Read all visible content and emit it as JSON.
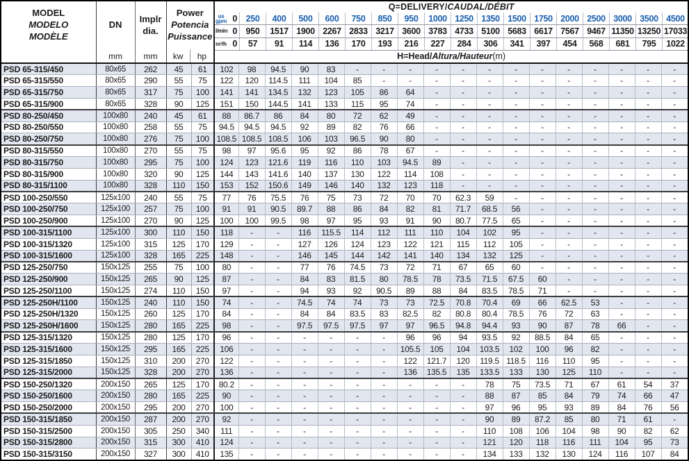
{
  "colors": {
    "accent_blue": "#1b5eae",
    "row_shade": "#e1e6f0",
    "text": "#1a1a1a"
  },
  "header": {
    "model": [
      "MODEL",
      "MODELO",
      "MODÈLE"
    ],
    "dn": "DN",
    "dn_unit": "mm",
    "impeller": [
      "Implr",
      "dia."
    ],
    "impeller_unit": "mm",
    "power": [
      "Power",
      "Potencia",
      "Puissance"
    ],
    "power_units": [
      "kw",
      "hp"
    ],
    "q_title": {
      "normal": "Q=DELIVERY/",
      "italic": "CAUDAL/DÉBIT"
    },
    "h_title": {
      "normal": "H=Head/",
      "italic": "Altura/Hauteur",
      "suffix": "(m)"
    },
    "flow_unit_labels": {
      "gpm": "us\ngpm",
      "lmin": "l/min",
      "m3h": "m³/h"
    }
  },
  "flow": {
    "gpm": [
      "0",
      "250",
      "400",
      "500",
      "600",
      "750",
      "850",
      "950",
      "1000",
      "1250",
      "1350",
      "1500",
      "1750",
      "2000",
      "2500",
      "3000",
      "3500",
      "4500"
    ],
    "lmin": [
      "0",
      "950",
      "1517",
      "1900",
      "2267",
      "2833",
      "3217",
      "3600",
      "3783",
      "4733",
      "5100",
      "5683",
      "6617",
      "7567",
      "9467",
      "11350",
      "13250",
      "17033"
    ],
    "m3h": [
      "0",
      "57",
      "91",
      "114",
      "136",
      "170",
      "193",
      "216",
      "227",
      "284",
      "306",
      "341",
      "397",
      "454",
      "568",
      "681",
      "795",
      "1022"
    ]
  },
  "group_end_rows": [
    3,
    6,
    10,
    13,
    16,
    19,
    22,
    26,
    29
  ],
  "rows": [
    {
      "model": "PSD 65-315/450",
      "dn": "80x65",
      "dia": "262",
      "kw": "45",
      "hp": "61",
      "head": [
        "102",
        "98",
        "94.5",
        "90",
        "83",
        "-",
        "-",
        "-",
        "-",
        "-",
        "-",
        "-",
        "-",
        "-",
        "-",
        "-",
        "-",
        "-"
      ]
    },
    {
      "model": "PSD 65-315/550",
      "dn": "80x65",
      "dia": "290",
      "kw": "55",
      "hp": "75",
      "head": [
        "122",
        "120",
        "114.5",
        "111",
        "104",
        "85",
        "-",
        "-",
        "-",
        "-",
        "-",
        "-",
        "-",
        "-",
        "-",
        "-",
        "-",
        "-"
      ]
    },
    {
      "model": "PSD 65-315/750",
      "dn": "80x65",
      "dia": "317",
      "kw": "75",
      "hp": "100",
      "head": [
        "141",
        "141",
        "134.5",
        "132",
        "123",
        "105",
        "86",
        "64",
        "-",
        "-",
        "-",
        "-",
        "-",
        "-",
        "-",
        "-",
        "-",
        "-"
      ]
    },
    {
      "model": "PSD 65-315/900",
      "dn": "80x65",
      "dia": "328",
      "kw": "90",
      "hp": "125",
      "head": [
        "151",
        "150",
        "144.5",
        "141",
        "133",
        "115",
        "95",
        "74",
        "-",
        "-",
        "-",
        "-",
        "-",
        "-",
        "-",
        "-",
        "-",
        "-"
      ]
    },
    {
      "model": "PSD 80-250/450",
      "dn": "100x80",
      "dia": "240",
      "kw": "45",
      "hp": "61",
      "head": [
        "88",
        "86.7",
        "86",
        "84",
        "80",
        "72",
        "62",
        "49",
        "-",
        "-",
        "-",
        "-",
        "-",
        "-",
        "-",
        "-",
        "-",
        "-"
      ]
    },
    {
      "model": "PSD 80-250/550",
      "dn": "100x80",
      "dia": "258",
      "kw": "55",
      "hp": "75",
      "head": [
        "94.5",
        "94.5",
        "94.5",
        "92",
        "89",
        "82",
        "76",
        "66",
        "-",
        "-",
        "-",
        "-",
        "-",
        "-",
        "-",
        "-",
        "-",
        "-"
      ]
    },
    {
      "model": "PSD 80-250/750",
      "dn": "100x80",
      "dia": "276",
      "kw": "75",
      "hp": "100",
      "head": [
        "108.5",
        "108.5",
        "108.5",
        "106",
        "103",
        "96.5",
        "90",
        "80",
        "-",
        "-",
        "-",
        "-",
        "-",
        "-",
        "-",
        "-",
        "-",
        "-"
      ]
    },
    {
      "model": "PSD 80-315/550",
      "dn": "100x80",
      "dia": "270",
      "kw": "55",
      "hp": "75",
      "head": [
        "98",
        "97",
        "95.6",
        "95",
        "92",
        "86",
        "78",
        "67",
        "-",
        "-",
        "-",
        "-",
        "-",
        "-",
        "-",
        "-",
        "-",
        "-"
      ]
    },
    {
      "model": "PSD 80-315/750",
      "dn": "100x80",
      "dia": "295",
      "kw": "75",
      "hp": "100",
      "head": [
        "124",
        "123",
        "121.6",
        "119",
        "116",
        "110",
        "103",
        "94.5",
        "89",
        "-",
        "-",
        "-",
        "-",
        "-",
        "-",
        "-",
        "-",
        "-"
      ]
    },
    {
      "model": "PSD 80-315/900",
      "dn": "100x80",
      "dia": "320",
      "kw": "90",
      "hp": "125",
      "head": [
        "144",
        "143",
        "141.6",
        "140",
        "137",
        "130",
        "122",
        "114",
        "108",
        "-",
        "-",
        "-",
        "-",
        "-",
        "-",
        "-",
        "-",
        "-"
      ]
    },
    {
      "model": "PSD 80-315/1100",
      "dn": "100x80",
      "dia": "328",
      "kw": "110",
      "hp": "150",
      "head": [
        "153",
        "152",
        "150.6",
        "149",
        "146",
        "140",
        "132",
        "123",
        "118",
        "-",
        "-",
        "-",
        "-",
        "-",
        "-",
        "-",
        "-",
        "-"
      ]
    },
    {
      "model": "PSD 100-250/550",
      "dn": "125x100",
      "dia": "240",
      "kw": "55",
      "hp": "75",
      "head": [
        "77",
        "76",
        "75.5",
        "76",
        "75",
        "73",
        "72",
        "70",
        "70",
        "62.3",
        "59",
        "-",
        "-",
        "-",
        "-",
        "-",
        "-",
        "-"
      ]
    },
    {
      "model": "PSD 100-250/750",
      "dn": "125x100",
      "dia": "257",
      "kw": "75",
      "hp": "100",
      "head": [
        "91",
        "91",
        "90.5",
        "89.7",
        "88",
        "86",
        "84",
        "82",
        "81",
        "71.7",
        "68.5",
        "56",
        "-",
        "-",
        "-",
        "-",
        "-",
        "-"
      ]
    },
    {
      "model": "PSD 100-250/900",
      "dn": "125x100",
      "dia": "270",
      "kw": "90",
      "hp": "125",
      "head": [
        "100",
        "100",
        "99.5",
        "98",
        "97",
        "95",
        "93",
        "91",
        "90",
        "80.7",
        "77.5",
        "65",
        "-",
        "-",
        "-",
        "-",
        "-",
        "-"
      ]
    },
    {
      "model": "PSD 100-315/1100",
      "dn": "125x100",
      "dia": "300",
      "kw": "110",
      "hp": "150",
      "head": [
        "118",
        "-",
        "-",
        "116",
        "115.5",
        "114",
        "112",
        "111",
        "110",
        "104",
        "102",
        "95",
        "-",
        "-",
        "-",
        "-",
        "-",
        "-"
      ]
    },
    {
      "model": "PSD 100-315/1320",
      "dn": "125x100",
      "dia": "315",
      "kw": "125",
      "hp": "170",
      "head": [
        "129",
        "-",
        "-",
        "127",
        "126",
        "124",
        "123",
        "122",
        "121",
        "115",
        "112",
        "105",
        "-",
        "-",
        "-",
        "-",
        "-",
        "-"
      ]
    },
    {
      "model": "PSD 100-315/1600",
      "dn": "125x100",
      "dia": "328",
      "kw": "165",
      "hp": "225",
      "head": [
        "148",
        "-",
        "-",
        "146",
        "145",
        "144",
        "142",
        "141",
        "140",
        "134",
        "132",
        "125",
        "-",
        "-",
        "-",
        "-",
        "-",
        "-"
      ]
    },
    {
      "model": "PSD 125-250/750",
      "dn": "150x125",
      "dia": "255",
      "kw": "75",
      "hp": "100",
      "head": [
        "80",
        "-",
        "-",
        "77",
        "76",
        "74.5",
        "73",
        "72",
        "71",
        "67",
        "65",
        "60",
        "-",
        "-",
        "-",
        "-",
        "-",
        "-"
      ]
    },
    {
      "model": "PSD 125-250/900",
      "dn": "150x125",
      "dia": "265",
      "kw": "90",
      "hp": "125",
      "head": [
        "87",
        "-",
        "-",
        "84",
        "83",
        "81.5",
        "80",
        "78.5",
        "78",
        "73.5",
        "71.5",
        "67.5",
        "60",
        "-",
        "-",
        "-",
        "-",
        "-"
      ]
    },
    {
      "model": "PSD 125-250/1100",
      "dn": "150x125",
      "dia": "274",
      "kw": "110",
      "hp": "150",
      "head": [
        "97",
        "-",
        "-",
        "94",
        "93",
        "92",
        "90.5",
        "89",
        "88",
        "84",
        "83.5",
        "78.5",
        "71",
        "-",
        "-",
        "-",
        "-",
        "-"
      ]
    },
    {
      "model": "PSD 125-250H/1100",
      "dn": "150x125",
      "dia": "240",
      "kw": "110",
      "hp": "150",
      "head": [
        "74",
        "-",
        "-",
        "74.5",
        "74",
        "74",
        "73",
        "73",
        "72.5",
        "70.8",
        "70.4",
        "69",
        "66",
        "62.5",
        "53",
        "-",
        "-",
        "-"
      ]
    },
    {
      "model": "PSD 125-250H/1320",
      "dn": "150x125",
      "dia": "260",
      "kw": "125",
      "hp": "170",
      "head": [
        "84",
        "-",
        "-",
        "84",
        "84",
        "83.5",
        "83",
        "82.5",
        "82",
        "80.8",
        "80.4",
        "78.5",
        "76",
        "72",
        "63",
        "-",
        "-",
        "-"
      ]
    },
    {
      "model": "PSD 125-250H/1600",
      "dn": "150x125",
      "dia": "280",
      "kw": "165",
      "hp": "225",
      "head": [
        "98",
        "-",
        "-",
        "97.5",
        "97.5",
        "97.5",
        "97",
        "97",
        "96.5",
        "94.8",
        "94.4",
        "93",
        "90",
        "87",
        "78",
        "66",
        "-",
        "-"
      ]
    },
    {
      "model": "PSD 125-315/1320",
      "dn": "150x125",
      "dia": "280",
      "kw": "125",
      "hp": "170",
      "head": [
        "96",
        "-",
        "-",
        "-",
        "-",
        "-",
        "-",
        "96",
        "96",
        "94",
        "93.5",
        "92",
        "88.5",
        "84",
        "65",
        "-",
        "-",
        "-"
      ]
    },
    {
      "model": "PSD 125-315/1600",
      "dn": "150x125",
      "dia": "295",
      "kw": "165",
      "hp": "225",
      "head": [
        "106",
        "-",
        "-",
        "-",
        "-",
        "-",
        "-",
        "105.5",
        "105",
        "104",
        "103.5",
        "102",
        "100",
        "96",
        "82",
        "-",
        "-",
        "-"
      ]
    },
    {
      "model": "PSD 125-315/1850",
      "dn": "150x125",
      "dia": "310",
      "kw": "200",
      "hp": "270",
      "head": [
        "122",
        "-",
        "-",
        "-",
        "-",
        "-",
        "-",
        "122",
        "121.7",
        "120",
        "119.5",
        "118.5",
        "116",
        "110",
        "95",
        "-",
        "-",
        "-"
      ]
    },
    {
      "model": "PSD 125-315/2000",
      "dn": "150x125",
      "dia": "328",
      "kw": "200",
      "hp": "270",
      "head": [
        "136",
        "-",
        "-",
        "-",
        "-",
        "-",
        "-",
        "136",
        "135.5",
        "135",
        "133.5",
        "133",
        "130",
        "125",
        "110",
        "-",
        "-",
        "-"
      ]
    },
    {
      "model": "PSD 150-250/1320",
      "dn": "200x150",
      "dia": "265",
      "kw": "125",
      "hp": "170",
      "head": [
        "80.2",
        "-",
        "-",
        "-",
        "-",
        "-",
        "-",
        "-",
        "-",
        "-",
        "78",
        "75",
        "73.5",
        "71",
        "67",
        "61",
        "54",
        "37"
      ]
    },
    {
      "model": "PSD 150-250/1600",
      "dn": "200x150",
      "dia": "280",
      "kw": "165",
      "hp": "225",
      "head": [
        "90",
        "-",
        "-",
        "-",
        "-",
        "-",
        "-",
        "-",
        "-",
        "-",
        "88",
        "87",
        "85",
        "84",
        "79",
        "74",
        "66",
        "47"
      ]
    },
    {
      "model": "PSD 150-250/2000",
      "dn": "200x150",
      "dia": "295",
      "kw": "200",
      "hp": "270",
      "head": [
        "100",
        "-",
        "-",
        "-",
        "-",
        "-",
        "-",
        "-",
        "-",
        "-",
        "97",
        "96",
        "95",
        "93",
        "89",
        "84",
        "76",
        "56"
      ]
    },
    {
      "model": "PSD 150-315/1850",
      "dn": "200x150",
      "dia": "287",
      "kw": "200",
      "hp": "270",
      "head": [
        "92",
        "-",
        "-",
        "-",
        "-",
        "-",
        "-",
        "-",
        "-",
        "-",
        "90",
        "89",
        "87.2",
        "85",
        "80",
        "71",
        "61",
        "-"
      ]
    },
    {
      "model": "PSD 150-315/2500",
      "dn": "200x150",
      "dia": "305",
      "kw": "250",
      "hp": "340",
      "head": [
        "111",
        "-",
        "-",
        "-",
        "-",
        "-",
        "-",
        "-",
        "-",
        "-",
        "110",
        "108",
        "106",
        "104",
        "98",
        "90",
        "82",
        "62"
      ]
    },
    {
      "model": "PSD 150-315/2800",
      "dn": "200x150",
      "dia": "315",
      "kw": "300",
      "hp": "410",
      "head": [
        "124",
        "-",
        "-",
        "-",
        "-",
        "-",
        "-",
        "-",
        "-",
        "-",
        "121",
        "120",
        "118",
        "116",
        "111",
        "104",
        "95",
        "73"
      ]
    },
    {
      "model": "PSD 150-315/3150",
      "dn": "200x150",
      "dia": "327",
      "kw": "300",
      "hp": "410",
      "head": [
        "135",
        "-",
        "-",
        "-",
        "-",
        "-",
        "-",
        "-",
        "-",
        "-",
        "134",
        "133",
        "132",
        "130",
        "124",
        "116",
        "107",
        "84"
      ]
    }
  ]
}
